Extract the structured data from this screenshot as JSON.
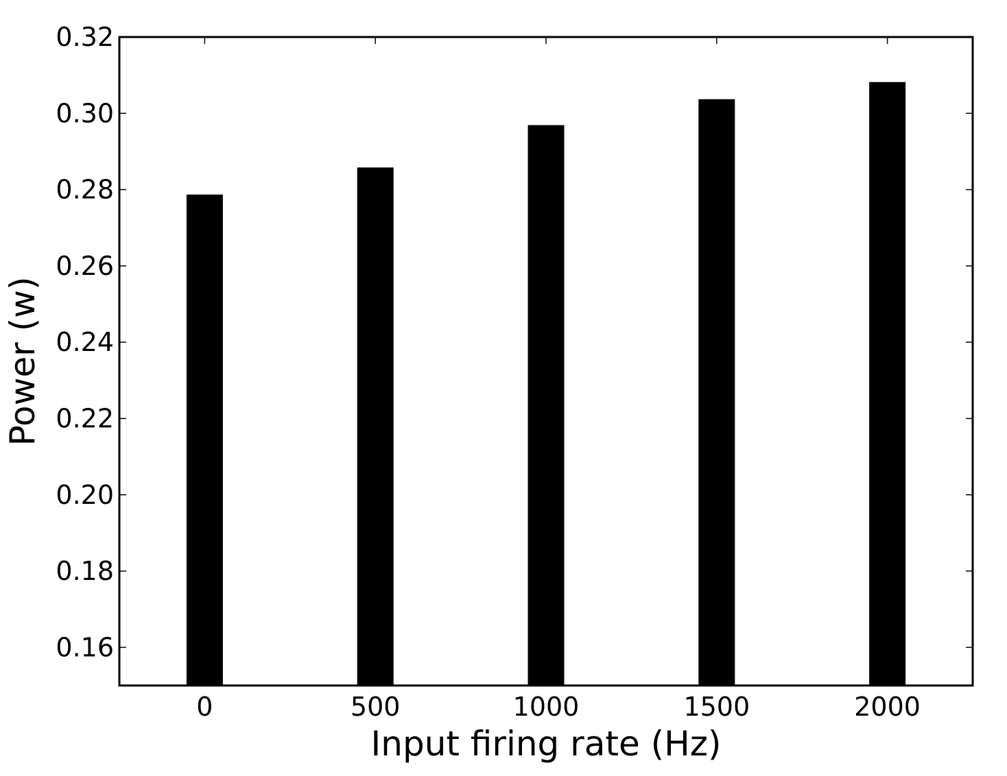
{
  "chart_data": {
    "type": "bar",
    "categories": [
      "0",
      "500",
      "1000",
      "1500",
      "2000"
    ],
    "x": [
      0,
      500,
      1000,
      1500,
      2000
    ],
    "values": [
      0.2787,
      0.2858,
      0.2969,
      0.3037,
      0.3082
    ],
    "title": "",
    "xlabel": "Input firing rate (Hz)",
    "ylabel": "Power (w)",
    "xlim": [
      -250,
      2250
    ],
    "ylim": [
      0.15,
      0.32
    ],
    "yticks": [
      0.16,
      0.18,
      0.2,
      0.22,
      0.24,
      0.26,
      0.28,
      0.3,
      0.32
    ],
    "ytick_labels": [
      "0.16",
      "0.18",
      "0.20",
      "0.22",
      "0.24",
      "0.26",
      "0.28",
      "0.30",
      "0.32"
    ],
    "xtick_labels": [
      "0",
      "500",
      "1000",
      "1500",
      "2000"
    ],
    "grid": false,
    "legend": "none",
    "bar_color": "#000000"
  }
}
